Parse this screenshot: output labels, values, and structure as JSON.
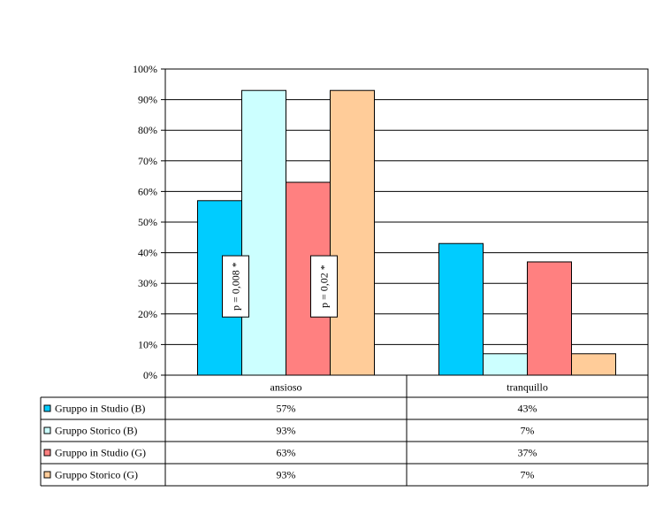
{
  "chart_data": {
    "type": "bar",
    "categories": [
      "ansioso",
      "tranquillo"
    ],
    "series": [
      {
        "name": "Gruppo in Studio (B)",
        "color": "#00CCFF",
        "values": [
          57,
          43
        ],
        "labels": [
          "57%",
          "43%"
        ]
      },
      {
        "name": "Gruppo Storico (B)",
        "color": "#CCFFFF",
        "values": [
          93,
          7
        ],
        "labels": [
          "93%",
          "7%"
        ]
      },
      {
        "name": "Gruppo in Studio (G)",
        "color": "#FF8080",
        "values": [
          63,
          37
        ],
        "labels": [
          "63%",
          "37%"
        ]
      },
      {
        "name": "Gruppo Storico (G)",
        "color": "#FFCC99",
        "values": [
          93,
          7
        ],
        "labels": [
          "93%",
          "7%"
        ]
      }
    ],
    "ylim": [
      0,
      100
    ],
    "yticks": [
      "0%",
      "10%",
      "20%",
      "30%",
      "40%",
      "50%",
      "60%",
      "70%",
      "80%",
      "90%",
      "100%"
    ],
    "grid": true,
    "legend": "data-table-left",
    "annotations": [
      {
        "text": "p = 0,008 *",
        "category": "ansioso",
        "between_series": [
          0,
          1
        ],
        "range": [
          19,
          39
        ]
      },
      {
        "text": "p = 0,02 *",
        "category": "ansioso",
        "between_series": [
          2,
          3
        ],
        "range": [
          19,
          39
        ]
      }
    ]
  }
}
